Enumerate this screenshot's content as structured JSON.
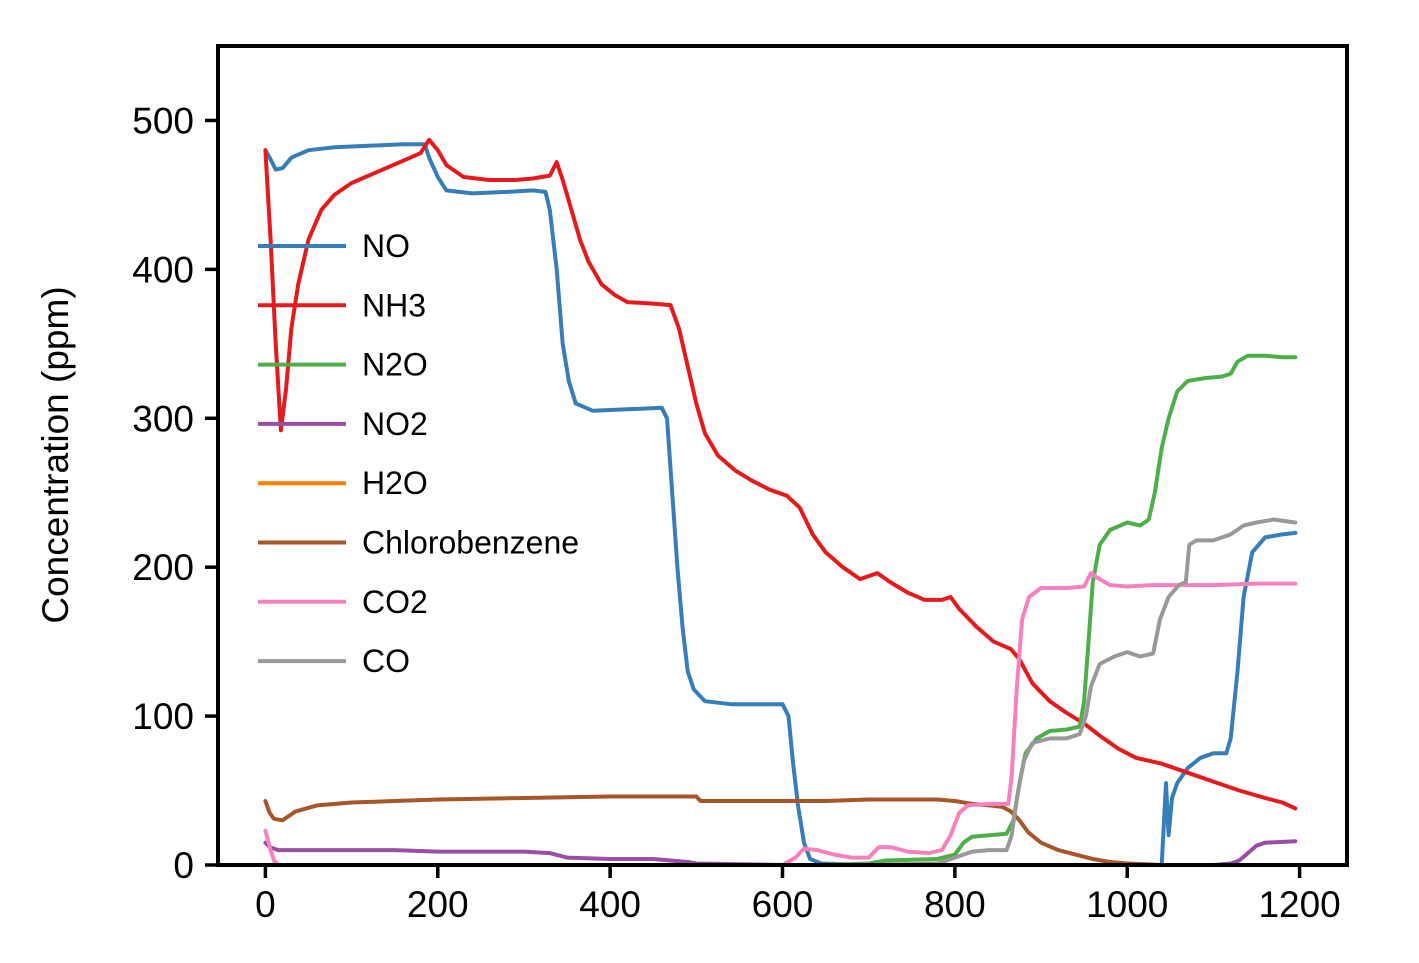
{
  "chart_data": {
    "type": "line",
    "title": "",
    "xlabel": "",
    "ylabel": "Concentration (ppm)",
    "xlim": [
      -55,
      1255
    ],
    "ylim": [
      0,
      550
    ],
    "xticks": [
      0,
      200,
      400,
      600,
      800,
      1000,
      1200
    ],
    "yticks": [
      0,
      100,
      200,
      300,
      400,
      500
    ],
    "grid": false,
    "legend_position": "center-left",
    "series": [
      {
        "name": "NO",
        "color": "#377eb8",
        "points": [
          [
            0,
            480
          ],
          [
            5,
            475
          ],
          [
            12,
            467
          ],
          [
            20,
            468
          ],
          [
            30,
            475
          ],
          [
            50,
            480
          ],
          [
            80,
            482
          ],
          [
            120,
            483
          ],
          [
            160,
            484
          ],
          [
            185,
            484
          ],
          [
            190,
            475
          ],
          [
            200,
            462
          ],
          [
            210,
            453
          ],
          [
            240,
            451
          ],
          [
            280,
            452
          ],
          [
            310,
            453
          ],
          [
            325,
            452
          ],
          [
            330,
            440
          ],
          [
            338,
            400
          ],
          [
            345,
            350
          ],
          [
            352,
            325
          ],
          [
            360,
            310
          ],
          [
            380,
            305
          ],
          [
            420,
            306
          ],
          [
            460,
            307
          ],
          [
            466,
            300
          ],
          [
            472,
            250
          ],
          [
            478,
            200
          ],
          [
            484,
            160
          ],
          [
            490,
            130
          ],
          [
            497,
            118
          ],
          [
            510,
            110
          ],
          [
            540,
            108
          ],
          [
            580,
            108
          ],
          [
            600,
            108
          ],
          [
            607,
            100
          ],
          [
            612,
            70
          ],
          [
            618,
            40
          ],
          [
            625,
            15
          ],
          [
            632,
            4
          ],
          [
            645,
            1
          ],
          [
            700,
            0
          ],
          [
            800,
            0
          ],
          [
            1000,
            0
          ],
          [
            1040,
            0
          ],
          [
            1045,
            55
          ],
          [
            1048,
            20
          ],
          [
            1052,
            45
          ],
          [
            1058,
            55
          ],
          [
            1070,
            65
          ],
          [
            1085,
            72
          ],
          [
            1100,
            75
          ],
          [
            1115,
            75
          ],
          [
            1120,
            85
          ],
          [
            1128,
            130
          ],
          [
            1135,
            180
          ],
          [
            1145,
            210
          ],
          [
            1160,
            220
          ],
          [
            1180,
            222
          ],
          [
            1195,
            223
          ]
        ]
      },
      {
        "name": "NH3",
        "color": "#e41a1c",
        "points": [
          [
            0,
            480
          ],
          [
            6,
            420
          ],
          [
            12,
            350
          ],
          [
            18,
            292
          ],
          [
            24,
            320
          ],
          [
            30,
            360
          ],
          [
            38,
            390
          ],
          [
            50,
            420
          ],
          [
            65,
            440
          ],
          [
            80,
            450
          ],
          [
            100,
            458
          ],
          [
            120,
            463
          ],
          [
            140,
            468
          ],
          [
            160,
            473
          ],
          [
            180,
            478
          ],
          [
            190,
            487
          ],
          [
            200,
            480
          ],
          [
            210,
            470
          ],
          [
            230,
            462
          ],
          [
            260,
            460
          ],
          [
            290,
            460
          ],
          [
            310,
            461
          ],
          [
            330,
            463
          ],
          [
            338,
            472
          ],
          [
            345,
            460
          ],
          [
            355,
            440
          ],
          [
            365,
            420
          ],
          [
            375,
            405
          ],
          [
            390,
            390
          ],
          [
            405,
            383
          ],
          [
            420,
            378
          ],
          [
            450,
            377
          ],
          [
            470,
            376
          ],
          [
            480,
            360
          ],
          [
            490,
            335
          ],
          [
            500,
            310
          ],
          [
            510,
            290
          ],
          [
            525,
            275
          ],
          [
            545,
            265
          ],
          [
            565,
            258
          ],
          [
            585,
            252
          ],
          [
            605,
            248
          ],
          [
            620,
            240
          ],
          [
            635,
            222
          ],
          [
            650,
            210
          ],
          [
            670,
            200
          ],
          [
            690,
            192
          ],
          [
            710,
            196
          ],
          [
            725,
            190
          ],
          [
            745,
            183
          ],
          [
            765,
            178
          ],
          [
            785,
            178
          ],
          [
            795,
            180
          ],
          [
            805,
            172
          ],
          [
            825,
            160
          ],
          [
            845,
            150
          ],
          [
            865,
            145
          ],
          [
            875,
            138
          ],
          [
            890,
            122
          ],
          [
            910,
            110
          ],
          [
            930,
            102
          ],
          [
            950,
            95
          ],
          [
            970,
            86
          ],
          [
            990,
            78
          ],
          [
            1010,
            72
          ],
          [
            1040,
            68
          ],
          [
            1070,
            62
          ],
          [
            1100,
            56
          ],
          [
            1130,
            50
          ],
          [
            1160,
            45
          ],
          [
            1180,
            42
          ],
          [
            1195,
            38
          ]
        ]
      },
      {
        "name": "N2O",
        "color": "#4daf4a",
        "points": [
          [
            0,
            0
          ],
          [
            600,
            0
          ],
          [
            650,
            0
          ],
          [
            700,
            1
          ],
          [
            720,
            3
          ],
          [
            780,
            4
          ],
          [
            800,
            7
          ],
          [
            810,
            15
          ],
          [
            820,
            19
          ],
          [
            840,
            20
          ],
          [
            860,
            21
          ],
          [
            868,
            30
          ],
          [
            875,
            55
          ],
          [
            882,
            75
          ],
          [
            895,
            85
          ],
          [
            910,
            90
          ],
          [
            930,
            91
          ],
          [
            945,
            93
          ],
          [
            950,
            110
          ],
          [
            955,
            150
          ],
          [
            960,
            190
          ],
          [
            968,
            215
          ],
          [
            980,
            225
          ],
          [
            1000,
            230
          ],
          [
            1015,
            228
          ],
          [
            1025,
            232
          ],
          [
            1032,
            250
          ],
          [
            1040,
            280
          ],
          [
            1048,
            300
          ],
          [
            1058,
            318
          ],
          [
            1070,
            325
          ],
          [
            1090,
            327
          ],
          [
            1110,
            328
          ],
          [
            1120,
            330
          ],
          [
            1128,
            338
          ],
          [
            1140,
            342
          ],
          [
            1160,
            342
          ],
          [
            1180,
            341
          ],
          [
            1195,
            341
          ]
        ]
      },
      {
        "name": "NO2",
        "color": "#984ea3",
        "points": [
          [
            0,
            15
          ],
          [
            5,
            12
          ],
          [
            15,
            10
          ],
          [
            50,
            10
          ],
          [
            100,
            10
          ],
          [
            150,
            10
          ],
          [
            200,
            9
          ],
          [
            250,
            9
          ],
          [
            300,
            9
          ],
          [
            330,
            8
          ],
          [
            350,
            5
          ],
          [
            400,
            4
          ],
          [
            450,
            4
          ],
          [
            470,
            3
          ],
          [
            490,
            2
          ],
          [
            500,
            1
          ],
          [
            600,
            0
          ],
          [
            800,
            0
          ],
          [
            1000,
            0
          ],
          [
            1100,
            0
          ],
          [
            1120,
            1
          ],
          [
            1130,
            3
          ],
          [
            1140,
            8
          ],
          [
            1150,
            13
          ],
          [
            1160,
            15
          ],
          [
            1195,
            16
          ]
        ]
      },
      {
        "name": "H2O",
        "color": "#ff7f00",
        "points": [
          [
            0,
            0
          ],
          [
            1195,
            0
          ]
        ]
      },
      {
        "name": "Chlorobenzene",
        "color": "#a65628",
        "points": [
          [
            0,
            43
          ],
          [
            5,
            35
          ],
          [
            10,
            31
          ],
          [
            20,
            30
          ],
          [
            35,
            36
          ],
          [
            60,
            40
          ],
          [
            100,
            42
          ],
          [
            150,
            43
          ],
          [
            200,
            44
          ],
          [
            300,
            45
          ],
          [
            400,
            46
          ],
          [
            500,
            46
          ],
          [
            505,
            43
          ],
          [
            600,
            43
          ],
          [
            650,
            43
          ],
          [
            700,
            44
          ],
          [
            780,
            44
          ],
          [
            800,
            43
          ],
          [
            820,
            41
          ],
          [
            840,
            40
          ],
          [
            855,
            39
          ],
          [
            865,
            36
          ],
          [
            875,
            30
          ],
          [
            885,
            22
          ],
          [
            900,
            15
          ],
          [
            920,
            10
          ],
          [
            940,
            7
          ],
          [
            960,
            4
          ],
          [
            980,
            2
          ],
          [
            1000,
            1
          ],
          [
            1040,
            0
          ],
          [
            1195,
            0
          ]
        ]
      },
      {
        "name": "CO2",
        "color": "#f781bf",
        "points": [
          [
            0,
            23
          ],
          [
            5,
            12
          ],
          [
            10,
            3
          ],
          [
            15,
            0
          ],
          [
            100,
            0
          ],
          [
            600,
            0
          ],
          [
            615,
            5
          ],
          [
            625,
            11
          ],
          [
            640,
            10
          ],
          [
            660,
            7
          ],
          [
            680,
            5
          ],
          [
            700,
            5
          ],
          [
            705,
            8
          ],
          [
            712,
            12
          ],
          [
            725,
            12
          ],
          [
            745,
            9
          ],
          [
            770,
            8
          ],
          [
            785,
            10
          ],
          [
            795,
            20
          ],
          [
            805,
            35
          ],
          [
            815,
            40
          ],
          [
            840,
            41
          ],
          [
            862,
            41
          ],
          [
            866,
            60
          ],
          [
            872,
            120
          ],
          [
            878,
            165
          ],
          [
            886,
            180
          ],
          [
            900,
            186
          ],
          [
            930,
            186
          ],
          [
            950,
            187
          ],
          [
            958,
            196
          ],
          [
            965,
            193
          ],
          [
            980,
            188
          ],
          [
            1000,
            187
          ],
          [
            1030,
            188
          ],
          [
            1060,
            188
          ],
          [
            1100,
            188
          ],
          [
            1150,
            189
          ],
          [
            1195,
            189
          ]
        ]
      },
      {
        "name": "CO",
        "color": "#999999",
        "points": [
          [
            0,
            0
          ],
          [
            600,
            0
          ],
          [
            650,
            0
          ],
          [
            700,
            0
          ],
          [
            780,
            1
          ],
          [
            800,
            5
          ],
          [
            820,
            9
          ],
          [
            840,
            10
          ],
          [
            860,
            10
          ],
          [
            866,
            20
          ],
          [
            872,
            45
          ],
          [
            880,
            70
          ],
          [
            890,
            82
          ],
          [
            910,
            85
          ],
          [
            930,
            85
          ],
          [
            945,
            88
          ],
          [
            952,
            100
          ],
          [
            958,
            120
          ],
          [
            968,
            135
          ],
          [
            985,
            140
          ],
          [
            1000,
            143
          ],
          [
            1015,
            140
          ],
          [
            1030,
            142
          ],
          [
            1038,
            165
          ],
          [
            1048,
            180
          ],
          [
            1060,
            188
          ],
          [
            1068,
            190
          ],
          [
            1072,
            215
          ],
          [
            1080,
            218
          ],
          [
            1100,
            218
          ],
          [
            1120,
            222
          ],
          [
            1135,
            228
          ],
          [
            1150,
            230
          ],
          [
            1170,
            232
          ],
          [
            1195,
            230
          ]
        ]
      }
    ]
  }
}
